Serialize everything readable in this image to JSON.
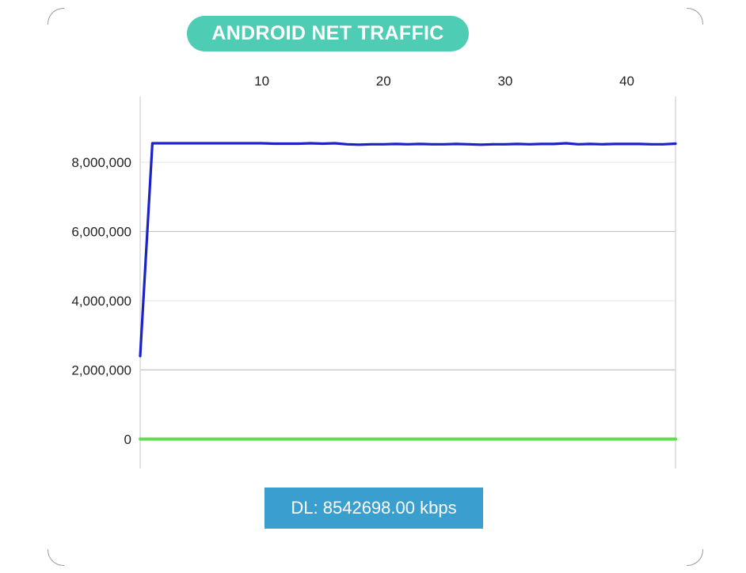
{
  "title": "ANDROID NET TRAFFIC",
  "status": {
    "dl_text": "DL: 8542698.00 kbps"
  },
  "colors": {
    "title_bg": "#4ecdb4",
    "download_line": "#1a22c8",
    "upload_line": "#5fe04a",
    "dl_box_bg": "#3a9fcf"
  },
  "chart_data": {
    "type": "line",
    "title": "ANDROID NET TRAFFIC",
    "xlabel": "",
    "ylabel": "",
    "xlim": [
      0,
      44
    ],
    "ylim": [
      -850000,
      9900000
    ],
    "x_ticks": [
      10,
      20,
      30,
      40
    ],
    "x_tick_labels": [
      "10",
      "20",
      "30",
      "40"
    ],
    "x_axis_position": "top",
    "y_ticks": [
      0,
      2000000,
      4000000,
      6000000,
      8000000
    ],
    "y_tick_labels": [
      "0",
      "2,000,000",
      "4,000,000",
      "6,000,000",
      "8,000,000"
    ],
    "grid": true,
    "series": [
      {
        "color": "#1a22c8",
        "x": [
          0,
          1,
          2,
          3,
          4,
          5,
          6,
          7,
          8,
          9,
          10,
          11,
          12,
          13,
          14,
          15,
          16,
          17,
          18,
          19,
          20,
          21,
          22,
          23,
          24,
          25,
          26,
          27,
          28,
          29,
          30,
          31,
          32,
          33,
          34,
          35,
          36,
          37,
          38,
          39,
          40,
          41,
          42,
          43,
          44
        ],
        "values": [
          2400000,
          8550000,
          8550000,
          8550000,
          8550000,
          8550000,
          8550000,
          8550000,
          8550000,
          8550000,
          8550000,
          8540000,
          8540000,
          8540000,
          8550000,
          8540000,
          8550000,
          8520000,
          8510000,
          8520000,
          8520000,
          8530000,
          8520000,
          8530000,
          8520000,
          8520000,
          8530000,
          8520000,
          8510000,
          8520000,
          8520000,
          8530000,
          8520000,
          8530000,
          8530000,
          8550000,
          8520000,
          8530000,
          8520000,
          8530000,
          8530000,
          8530000,
          8520000,
          8520000,
          8540000
        ]
      },
      {
        "color": "#5fe04a",
        "x": [
          0,
          44
        ],
        "values": [
          0,
          0
        ]
      }
    ]
  }
}
